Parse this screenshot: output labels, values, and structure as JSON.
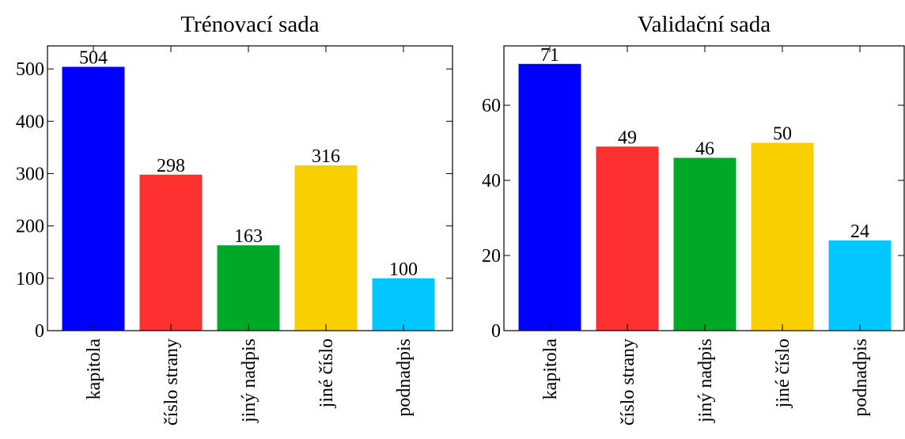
{
  "chart_data": [
    {
      "type": "bar",
      "title": "Trénovací sada",
      "categories": [
        "kapitola",
        "číslo strany",
        "jiný nadpis",
        "jiné číslo",
        "podnadpis"
      ],
      "values": [
        504,
        298,
        163,
        316,
        100
      ],
      "colors": [
        "#0000ff",
        "#ff3030",
        "#00a828",
        "#f9cf00",
        "#00c8ff"
      ],
      "ylim": [
        0,
        544
      ],
      "yticks": [
        0,
        100,
        200,
        300,
        400,
        500
      ]
    },
    {
      "type": "bar",
      "title": "Validační sada",
      "categories": [
        "kapitola",
        "číslo strany",
        "jiný nadpis",
        "jiné číslo",
        "podnadpis"
      ],
      "values": [
        71,
        49,
        46,
        50,
        24
      ],
      "colors": [
        "#0000ff",
        "#ff3030",
        "#00a828",
        "#f9cf00",
        "#00c8ff"
      ],
      "ylim": [
        0,
        75.8
      ],
      "yticks": [
        0,
        20,
        40,
        60
      ]
    }
  ]
}
